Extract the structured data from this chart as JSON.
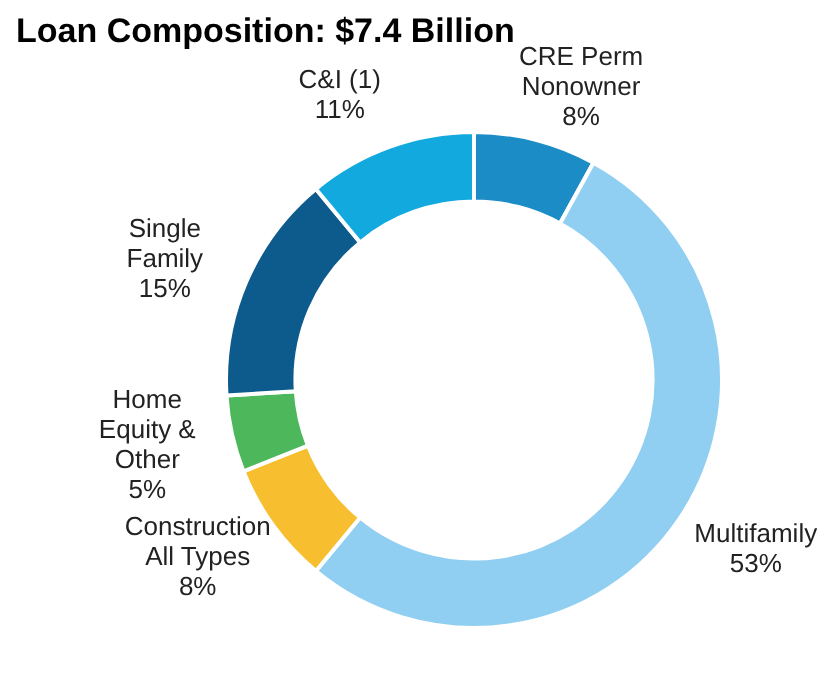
{
  "chart_data": {
    "type": "donut",
    "title": "Loan Composition: $7.4 Billion",
    "categories": [
      "CRE Perm Nonowner",
      "Multifamily",
      "Construction All Types",
      "Home Equity & Other",
      "Single Family",
      "C&I (1)"
    ],
    "values": [
      8,
      53,
      8,
      5,
      15,
      11
    ],
    "value_labels": [
      "8%",
      "53%",
      "8%",
      "5%",
      "15%",
      "11%"
    ],
    "colors": [
      "#1b8cc6",
      "#90cff1",
      "#f7bf30",
      "#4db85b",
      "#0d5b8c",
      "#12a9df"
    ],
    "legend": false
  }
}
